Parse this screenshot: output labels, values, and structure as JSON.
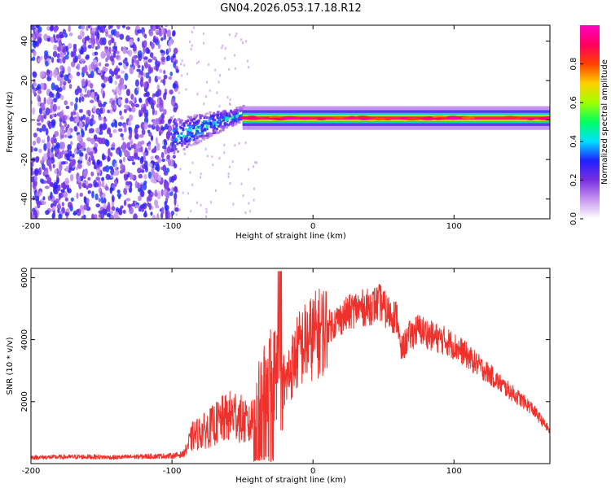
{
  "chart_data": [
    {
      "type": "heatmap",
      "title": "GN04.2026.053.17.18.R12",
      "xlabel": "Height of straight line (km)",
      "ylabel": "Frequency (Hz)",
      "xlim": [
        -200,
        168
      ],
      "ylim": [
        -50,
        48
      ],
      "x_ticks": [
        -200,
        -100,
        0,
        100
      ],
      "y_ticks": [
        -40,
        -20,
        0,
        20,
        40
      ],
      "colorbar": {
        "label": "Normalized spectral amplitude",
        "range": [
          0,
          1
        ],
        "ticks": [
          "0.0",
          "0.2",
          "0.4",
          "0.6",
          "0.8"
        ],
        "colors": [
          "#ffffff",
          "#c896f0",
          "#7a2ee0",
          "#2020ff",
          "#00e0ff",
          "#00ff60",
          "#a0ff00",
          "#ffd000",
          "#ff4000",
          "#ff0060",
          "#ff00c0"
        ]
      },
      "regions": [
        {
          "name": "noise-field",
          "x_range": [
            -200,
            -100
          ],
          "freq_range": [
            -50,
            48
          ],
          "amplitude": 0.25
        },
        {
          "name": "emerging-signal",
          "x_range": [
            -100,
            -50
          ],
          "freq_center_start": -8,
          "freq_center_end": 4,
          "amplitude": 0.4
        },
        {
          "name": "strong-signal",
          "x_range": [
            -50,
            168
          ],
          "freq_center": 1,
          "amplitude": 0.95
        }
      ]
    },
    {
      "type": "line",
      "xlabel": "Height of straight line (km)",
      "ylabel": "SNR (10 * v/v)",
      "xlim": [
        -200,
        168
      ],
      "ylim": [
        0,
        6300
      ],
      "x_ticks": [
        -200,
        -100,
        0,
        100
      ],
      "y_ticks": [
        2000,
        4000,
        6000
      ],
      "color": "#f0302a",
      "series": [
        {
          "name": "SNR",
          "x": [
            -200,
            -180,
            -160,
            -140,
            -120,
            -100,
            -92,
            -85,
            -75,
            -65,
            -55,
            -45,
            -35,
            -25,
            -22,
            -18,
            -10,
            0,
            10,
            20,
            30,
            40,
            48,
            52,
            60,
            62,
            68,
            75,
            85,
            95,
            105,
            115,
            125,
            135,
            145,
            155,
            168
          ],
          "y": [
            200,
            210,
            220,
            200,
            230,
            250,
            300,
            900,
            1100,
            1400,
            1600,
            1200,
            2600,
            3000,
            2200,
            2800,
            3700,
            4100,
            4400,
            4700,
            5000,
            5050,
            5200,
            4900,
            4700,
            3600,
            4100,
            4350,
            4100,
            3950,
            3650,
            3250,
            2900,
            2500,
            2150,
            1800,
            1050
          ]
        }
      ]
    }
  ]
}
